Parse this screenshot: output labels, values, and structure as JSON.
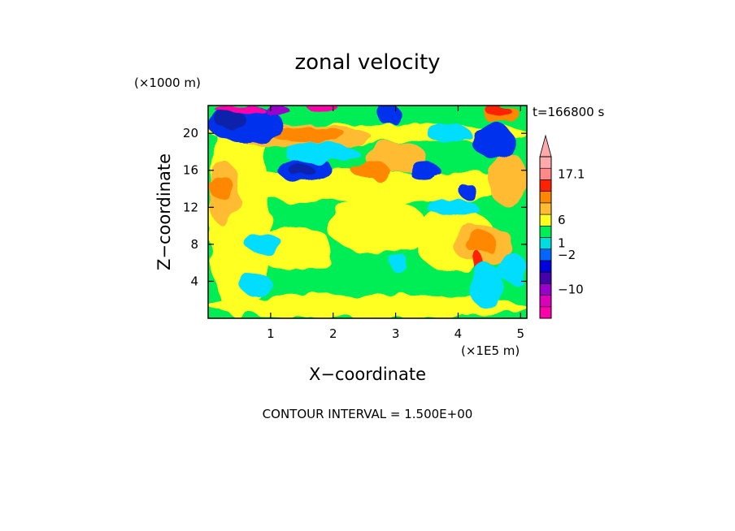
{
  "chart_data": {
    "type": "heatmap",
    "title": "zonal velocity",
    "time_label": "t=166800 s",
    "xlabel": "X−coordinate",
    "ylabel": "Z−coordinate",
    "x_unit": "(×1E5 m)",
    "y_unit": "(×1000 m)",
    "xlim": [
      0,
      5.1
    ],
    "ylim": [
      0,
      23
    ],
    "x_ticks": [
      {
        "value": 1,
        "label": "1"
      },
      {
        "value": 2,
        "label": "2"
      },
      {
        "value": 3,
        "label": "3"
      },
      {
        "value": 4,
        "label": "4"
      },
      {
        "value": 5,
        "label": "5"
      }
    ],
    "y_ticks": [
      {
        "value": 4,
        "label": "4"
      },
      {
        "value": 8,
        "label": "8"
      },
      {
        "value": 12,
        "label": "12"
      },
      {
        "value": 16,
        "label": "16"
      },
      {
        "value": 20,
        "label": "20"
      }
    ],
    "contour_interval_text": "CONTOUR INTERVAL = 1.500E+00",
    "colorbar": {
      "max_label": "17.1",
      "labels": [
        {
          "level": 12,
          "text": "17.1"
        },
        {
          "level": 8,
          "text": "6"
        },
        {
          "level": 6,
          "text": "1"
        },
        {
          "level": 5,
          "text": "−2"
        },
        {
          "level": 2,
          "text": "−10"
        }
      ],
      "colors": [
        "#ff00aa",
        "#dd00bb",
        "#9900cc",
        "#4400aa",
        "#0000dd",
        "#0066ff",
        "#00dddd",
        "#00ee55",
        "#ffff22",
        "#ffbb33",
        "#ff8800",
        "#ff2200",
        "#ff8888",
        "#ffaaaa"
      ]
    },
    "palette": {
      "magenta": "#ff00aa",
      "violet": "#9900cc",
      "navy": "#1122aa",
      "blue": "#0033ee",
      "cyan": "#00ddff",
      "green": "#00ee55",
      "yellow": "#ffff22",
      "light_orange": "#ffbb33",
      "orange": "#ff8800",
      "red": "#ff2200"
    },
    "base_color": "#00ee55",
    "features": [
      {
        "color": "yellow",
        "x": [
          0,
          5.1
        ],
        "y": [
          19,
          21
        ]
      },
      {
        "color": "yellow",
        "x": [
          0,
          5.1
        ],
        "y": [
          12.5,
          16
        ]
      },
      {
        "color": "yellow",
        "x": [
          0,
          5.1
        ],
        "y": [
          0,
          2.5
        ]
      },
      {
        "color": "yellow",
        "x": [
          0,
          1.0
        ],
        "y": [
          0,
          23
        ]
      },
      {
        "color": "yellow",
        "x": [
          1.9,
          3.5
        ],
        "y": [
          7,
          13
        ]
      },
      {
        "color": "yellow",
        "x": [
          0.8,
          2.0
        ],
        "y": [
          5,
          10
        ]
      },
      {
        "color": "yellow",
        "x": [
          3.3,
          4.6
        ],
        "y": [
          5,
          12
        ]
      },
      {
        "color": "light_orange",
        "x": [
          0.3,
          2.6
        ],
        "y": [
          18.5,
          21
        ]
      },
      {
        "color": "light_orange",
        "x": [
          2.5,
          3.5
        ],
        "y": [
          16,
          19
        ]
      },
      {
        "color": "light_orange",
        "x": [
          3.9,
          4.9
        ],
        "y": [
          6,
          10
        ]
      },
      {
        "color": "light_orange",
        "x": [
          0,
          0.5
        ],
        "y": [
          10,
          17
        ]
      },
      {
        "color": "light_orange",
        "x": [
          4.5,
          5.1
        ],
        "y": [
          12,
          18
        ]
      },
      {
        "color": "orange",
        "x": [
          1.0,
          2.2
        ],
        "y": [
          19,
          20.8
        ]
      },
      {
        "color": "orange",
        "x": [
          2.3,
          2.9
        ],
        "y": [
          15,
          17
        ]
      },
      {
        "color": "orange",
        "x": [
          4.1,
          4.6
        ],
        "y": [
          7,
          9.5
        ]
      },
      {
        "color": "orange",
        "x": [
          0,
          0.4
        ],
        "y": [
          13,
          15.5
        ]
      },
      {
        "color": "orange",
        "x": [
          4.4,
          5.0
        ],
        "y": [
          21,
          23
        ]
      },
      {
        "color": "red",
        "x": [
          4.45,
          4.85
        ],
        "y": [
          21.8,
          23
        ]
      },
      {
        "color": "red",
        "x": [
          4.28,
          4.42
        ],
        "y": [
          4.5,
          7
        ]
      },
      {
        "color": "blue",
        "x": [
          0,
          1.2
        ],
        "y": [
          19,
          23
        ]
      },
      {
        "color": "blue",
        "x": [
          1.1,
          2.0
        ],
        "y": [
          14.8,
          17.4
        ]
      },
      {
        "color": "blue",
        "x": [
          3.2,
          3.7
        ],
        "y": [
          15,
          17
        ]
      },
      {
        "color": "blue",
        "x": [
          4.2,
          4.9
        ],
        "y": [
          17.5,
          21
        ]
      },
      {
        "color": "blue",
        "x": [
          2.7,
          3.1
        ],
        "y": [
          21,
          23
        ]
      },
      {
        "color": "blue",
        "x": [
          4.0,
          4.3
        ],
        "y": [
          13,
          14.5
        ]
      },
      {
        "color": "navy",
        "x": [
          0.1,
          0.6
        ],
        "y": [
          20.5,
          22.5
        ]
      },
      {
        "color": "navy",
        "x": [
          1.3,
          1.7
        ],
        "y": [
          15.3,
          16.6
        ]
      },
      {
        "color": "navy",
        "x": [
          4.38,
          4.5
        ],
        "y": [
          1,
          4
        ]
      },
      {
        "color": "cyan",
        "x": [
          1.2,
          2.4
        ],
        "y": [
          16.8,
          19
        ]
      },
      {
        "color": "cyan",
        "x": [
          3.5,
          4.2
        ],
        "y": [
          19,
          21
        ]
      },
      {
        "color": "cyan",
        "x": [
          0.6,
          1.2
        ],
        "y": [
          7,
          9
        ]
      },
      {
        "color": "cyan",
        "x": [
          0.5,
          1.0
        ],
        "y": [
          2.5,
          5
        ]
      },
      {
        "color": "cyan",
        "x": [
          3.5,
          4.3
        ],
        "y": [
          11,
          13
        ]
      },
      {
        "color": "cyan",
        "x": [
          4.2,
          4.7
        ],
        "y": [
          1,
          6
        ]
      },
      {
        "color": "cyan",
        "x": [
          4.6,
          5.1
        ],
        "y": [
          4,
          7
        ]
      },
      {
        "color": "cyan",
        "x": [
          2.9,
          3.2
        ],
        "y": [
          5,
          7
        ]
      },
      {
        "color": "magenta",
        "x": [
          0.1,
          0.9
        ],
        "y": [
          22.2,
          23
        ]
      },
      {
        "color": "magenta",
        "x": [
          1.6,
          2.1
        ],
        "y": [
          22.3,
          23
        ]
      },
      {
        "color": "violet",
        "x": [
          0.9,
          1.3
        ],
        "y": [
          22,
          23
        ]
      }
    ]
  }
}
